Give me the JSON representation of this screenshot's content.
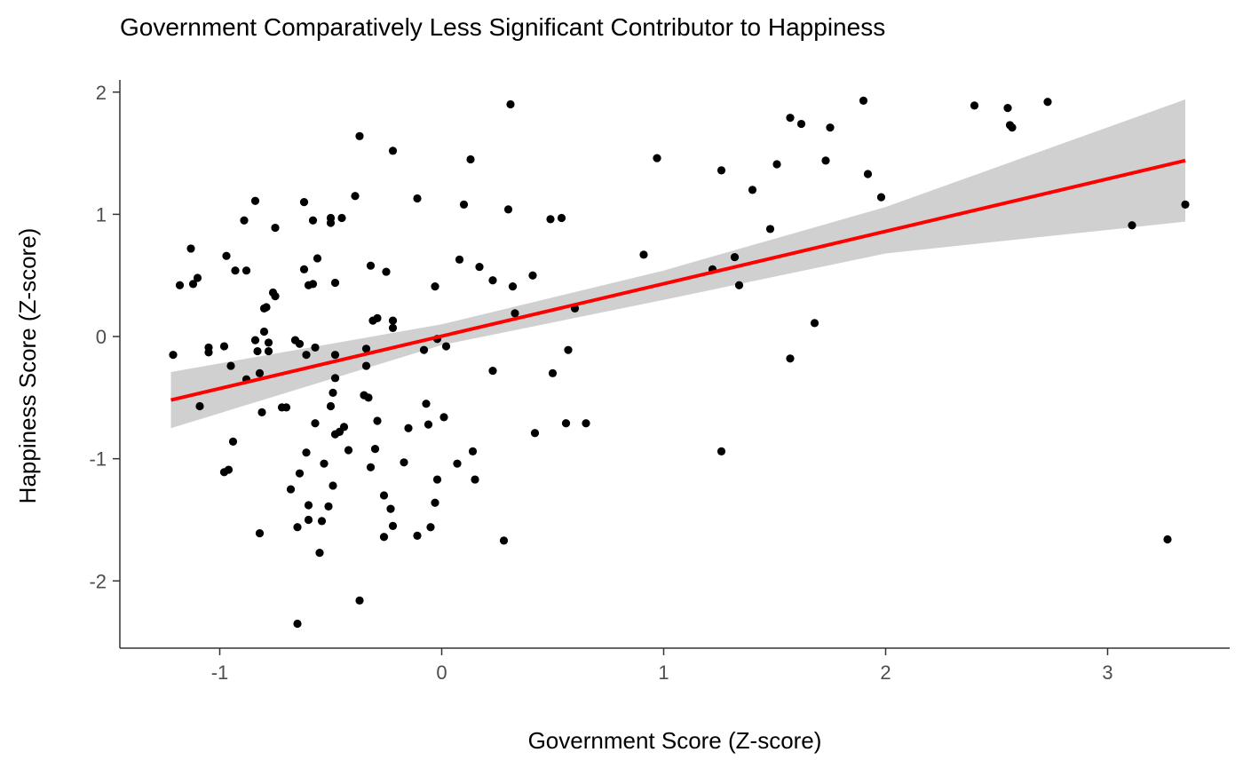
{
  "chart_data": {
    "type": "scatter",
    "title": "Government Comparatively Less Significant Contributor to Happiness",
    "xlabel": "Government Score (Z-score)",
    "ylabel": "Happiness Score (Z-score)",
    "xlim": [
      -1.45,
      3.55
    ],
    "ylim": [
      -2.55,
      2.1
    ],
    "x_ticks": [
      -1,
      0,
      1,
      2,
      3
    ],
    "x_tick_labels": [
      "-1",
      "0",
      "1",
      "2",
      "3"
    ],
    "y_ticks": [
      -2,
      -1,
      0,
      1,
      2
    ],
    "y_tick_labels": [
      "-2",
      "-1",
      "0",
      "1",
      "2"
    ],
    "grid": false,
    "colors": {
      "points": "#000000",
      "fit_line": "#ff0000",
      "confidence_band": "#d0d0d0"
    },
    "fit_line": {
      "x": [
        -1.22,
        3.35
      ],
      "y": [
        -0.52,
        1.44
      ]
    },
    "confidence_band": {
      "x": [
        -1.22,
        0.0,
        1.0,
        2.0,
        3.35
      ],
      "lower": [
        -0.75,
        -0.07,
        0.3,
        0.68,
        0.94
      ],
      "upper": [
        -0.29,
        0.1,
        0.54,
        1.06,
        1.94
      ]
    },
    "points": [
      {
        "x": -1.21,
        "y": -0.15
      },
      {
        "x": -1.18,
        "y": 0.42
      },
      {
        "x": -1.13,
        "y": 0.72
      },
      {
        "x": -1.12,
        "y": 0.43
      },
      {
        "x": -1.1,
        "y": 0.48
      },
      {
        "x": -1.09,
        "y": -0.57
      },
      {
        "x": -1.05,
        "y": -0.09
      },
      {
        "x": -1.05,
        "y": -0.13
      },
      {
        "x": -0.98,
        "y": -0.08
      },
      {
        "x": -0.97,
        "y": 0.66
      },
      {
        "x": -0.98,
        "y": -1.11
      },
      {
        "x": -0.96,
        "y": -1.09
      },
      {
        "x": -0.95,
        "y": -0.24
      },
      {
        "x": -0.94,
        "y": -0.86
      },
      {
        "x": -0.93,
        "y": 0.54
      },
      {
        "x": -0.89,
        "y": 0.95
      },
      {
        "x": -0.88,
        "y": 0.54
      },
      {
        "x": -0.88,
        "y": -0.35
      },
      {
        "x": -0.84,
        "y": 1.11
      },
      {
        "x": -0.84,
        "y": -0.03
      },
      {
        "x": -0.83,
        "y": -0.12
      },
      {
        "x": -0.82,
        "y": -0.3
      },
      {
        "x": -0.82,
        "y": -1.61
      },
      {
        "x": -0.81,
        "y": -0.62
      },
      {
        "x": -0.8,
        "y": 0.23
      },
      {
        "x": -0.8,
        "y": 0.04
      },
      {
        "x": -0.79,
        "y": 0.24
      },
      {
        "x": -0.78,
        "y": -0.12
      },
      {
        "x": -0.78,
        "y": -0.05
      },
      {
        "x": -0.76,
        "y": 0.36
      },
      {
        "x": -0.75,
        "y": 0.89
      },
      {
        "x": -0.75,
        "y": 0.33
      },
      {
        "x": -0.72,
        "y": -0.58
      },
      {
        "x": -0.7,
        "y": -0.58
      },
      {
        "x": -0.68,
        "y": -1.25
      },
      {
        "x": -0.66,
        "y": -0.03
      },
      {
        "x": -0.65,
        "y": -1.56
      },
      {
        "x": -0.65,
        "y": -2.35
      },
      {
        "x": -0.64,
        "y": -1.12
      },
      {
        "x": -0.64,
        "y": -0.06
      },
      {
        "x": -0.62,
        "y": 0.55
      },
      {
        "x": -0.62,
        "y": 1.1
      },
      {
        "x": -0.61,
        "y": -0.15
      },
      {
        "x": -0.61,
        "y": -0.95
      },
      {
        "x": -0.6,
        "y": -1.38
      },
      {
        "x": -0.6,
        "y": -1.5
      },
      {
        "x": -0.6,
        "y": 0.42
      },
      {
        "x": -0.58,
        "y": 0.43
      },
      {
        "x": -0.58,
        "y": 0.95
      },
      {
        "x": -0.57,
        "y": -0.09
      },
      {
        "x": -0.57,
        "y": -0.71
      },
      {
        "x": -0.56,
        "y": 0.64
      },
      {
        "x": -0.55,
        "y": -1.77
      },
      {
        "x": -0.54,
        "y": -1.51
      },
      {
        "x": -0.53,
        "y": -1.04
      },
      {
        "x": -0.51,
        "y": -1.39
      },
      {
        "x": -0.5,
        "y": 0.97
      },
      {
        "x": -0.5,
        "y": 0.93
      },
      {
        "x": -0.5,
        "y": -0.57
      },
      {
        "x": -0.49,
        "y": -0.46
      },
      {
        "x": -0.49,
        "y": -1.22
      },
      {
        "x": -0.48,
        "y": -0.34
      },
      {
        "x": -0.48,
        "y": -0.15
      },
      {
        "x": -0.48,
        "y": 0.44
      },
      {
        "x": -0.48,
        "y": -0.8
      },
      {
        "x": -0.46,
        "y": -0.78
      },
      {
        "x": -0.45,
        "y": 0.97
      },
      {
        "x": -0.44,
        "y": -0.74
      },
      {
        "x": -0.42,
        "y": -0.93
      },
      {
        "x": -0.39,
        "y": 1.15
      },
      {
        "x": -0.37,
        "y": 1.64
      },
      {
        "x": -0.37,
        "y": -2.16
      },
      {
        "x": -0.35,
        "y": -0.48
      },
      {
        "x": -0.34,
        "y": -0.1
      },
      {
        "x": -0.34,
        "y": -0.24
      },
      {
        "x": -0.33,
        "y": -0.5
      },
      {
        "x": -0.32,
        "y": -1.07
      },
      {
        "x": -0.32,
        "y": 0.58
      },
      {
        "x": -0.31,
        "y": 0.13
      },
      {
        "x": -0.3,
        "y": -0.92
      },
      {
        "x": -0.29,
        "y": 0.15
      },
      {
        "x": -0.29,
        "y": -0.69
      },
      {
        "x": -0.26,
        "y": -1.3
      },
      {
        "x": -0.26,
        "y": -1.64
      },
      {
        "x": -0.25,
        "y": 0.53
      },
      {
        "x": -0.23,
        "y": -1.41
      },
      {
        "x": -0.22,
        "y": -1.55
      },
      {
        "x": -0.22,
        "y": 0.13
      },
      {
        "x": -0.22,
        "y": 0.07
      },
      {
        "x": -0.22,
        "y": 1.52
      },
      {
        "x": -0.17,
        "y": -1.03
      },
      {
        "x": -0.15,
        "y": -0.75
      },
      {
        "x": -0.11,
        "y": 1.13
      },
      {
        "x": -0.11,
        "y": -1.63
      },
      {
        "x": -0.08,
        "y": -0.11
      },
      {
        "x": -0.07,
        "y": -0.55
      },
      {
        "x": -0.06,
        "y": -0.72
      },
      {
        "x": -0.05,
        "y": -1.56
      },
      {
        "x": -0.03,
        "y": -1.36
      },
      {
        "x": -0.03,
        "y": 0.41
      },
      {
        "x": -0.02,
        "y": -0.02
      },
      {
        "x": -0.02,
        "y": -1.17
      },
      {
        "x": 0.01,
        "y": -0.66
      },
      {
        "x": 0.02,
        "y": -0.08
      },
      {
        "x": 0.07,
        "y": -1.04
      },
      {
        "x": 0.08,
        "y": 0.63
      },
      {
        "x": 0.1,
        "y": 1.08
      },
      {
        "x": 0.13,
        "y": 1.45
      },
      {
        "x": 0.14,
        "y": -0.94
      },
      {
        "x": 0.15,
        "y": -1.17
      },
      {
        "x": 0.17,
        "y": 0.57
      },
      {
        "x": 0.23,
        "y": 0.46
      },
      {
        "x": 0.23,
        "y": -0.28
      },
      {
        "x": 0.28,
        "y": -1.67
      },
      {
        "x": 0.3,
        "y": 1.04
      },
      {
        "x": 0.31,
        "y": 1.9
      },
      {
        "x": 0.32,
        "y": 0.41
      },
      {
        "x": 0.33,
        "y": 0.19
      },
      {
        "x": 0.41,
        "y": 0.5
      },
      {
        "x": 0.42,
        "y": -0.79
      },
      {
        "x": 0.49,
        "y": 0.96
      },
      {
        "x": 0.5,
        "y": -0.3
      },
      {
        "x": 0.54,
        "y": 0.97
      },
      {
        "x": 0.56,
        "y": -0.71
      },
      {
        "x": 0.57,
        "y": -0.11
      },
      {
        "x": 0.6,
        "y": 0.23
      },
      {
        "x": 0.65,
        "y": -0.71
      },
      {
        "x": 0.91,
        "y": 0.67
      },
      {
        "x": 0.97,
        "y": 1.46
      },
      {
        "x": 1.22,
        "y": 0.55
      },
      {
        "x": 1.26,
        "y": 1.36
      },
      {
        "x": 1.26,
        "y": -0.94
      },
      {
        "x": 1.32,
        "y": 0.65
      },
      {
        "x": 1.34,
        "y": 0.42
      },
      {
        "x": 1.4,
        "y": 1.2
      },
      {
        "x": 1.48,
        "y": 0.88
      },
      {
        "x": 1.51,
        "y": 1.41
      },
      {
        "x": 1.57,
        "y": 1.79
      },
      {
        "x": 1.57,
        "y": -0.18
      },
      {
        "x": 1.62,
        "y": 1.74
      },
      {
        "x": 1.68,
        "y": 0.11
      },
      {
        "x": 1.73,
        "y": 1.44
      },
      {
        "x": 1.75,
        "y": 1.71
      },
      {
        "x": 1.9,
        "y": 1.93
      },
      {
        "x": 1.92,
        "y": 1.33
      },
      {
        "x": 1.98,
        "y": 1.14
      },
      {
        "x": 2.4,
        "y": 1.89
      },
      {
        "x": 2.55,
        "y": 1.87
      },
      {
        "x": 2.56,
        "y": 1.73
      },
      {
        "x": 2.57,
        "y": 1.71
      },
      {
        "x": 2.73,
        "y": 1.92
      },
      {
        "x": 3.11,
        "y": 0.91
      },
      {
        "x": 3.27,
        "y": -1.66
      },
      {
        "x": 3.35,
        "y": 1.08
      }
    ]
  }
}
